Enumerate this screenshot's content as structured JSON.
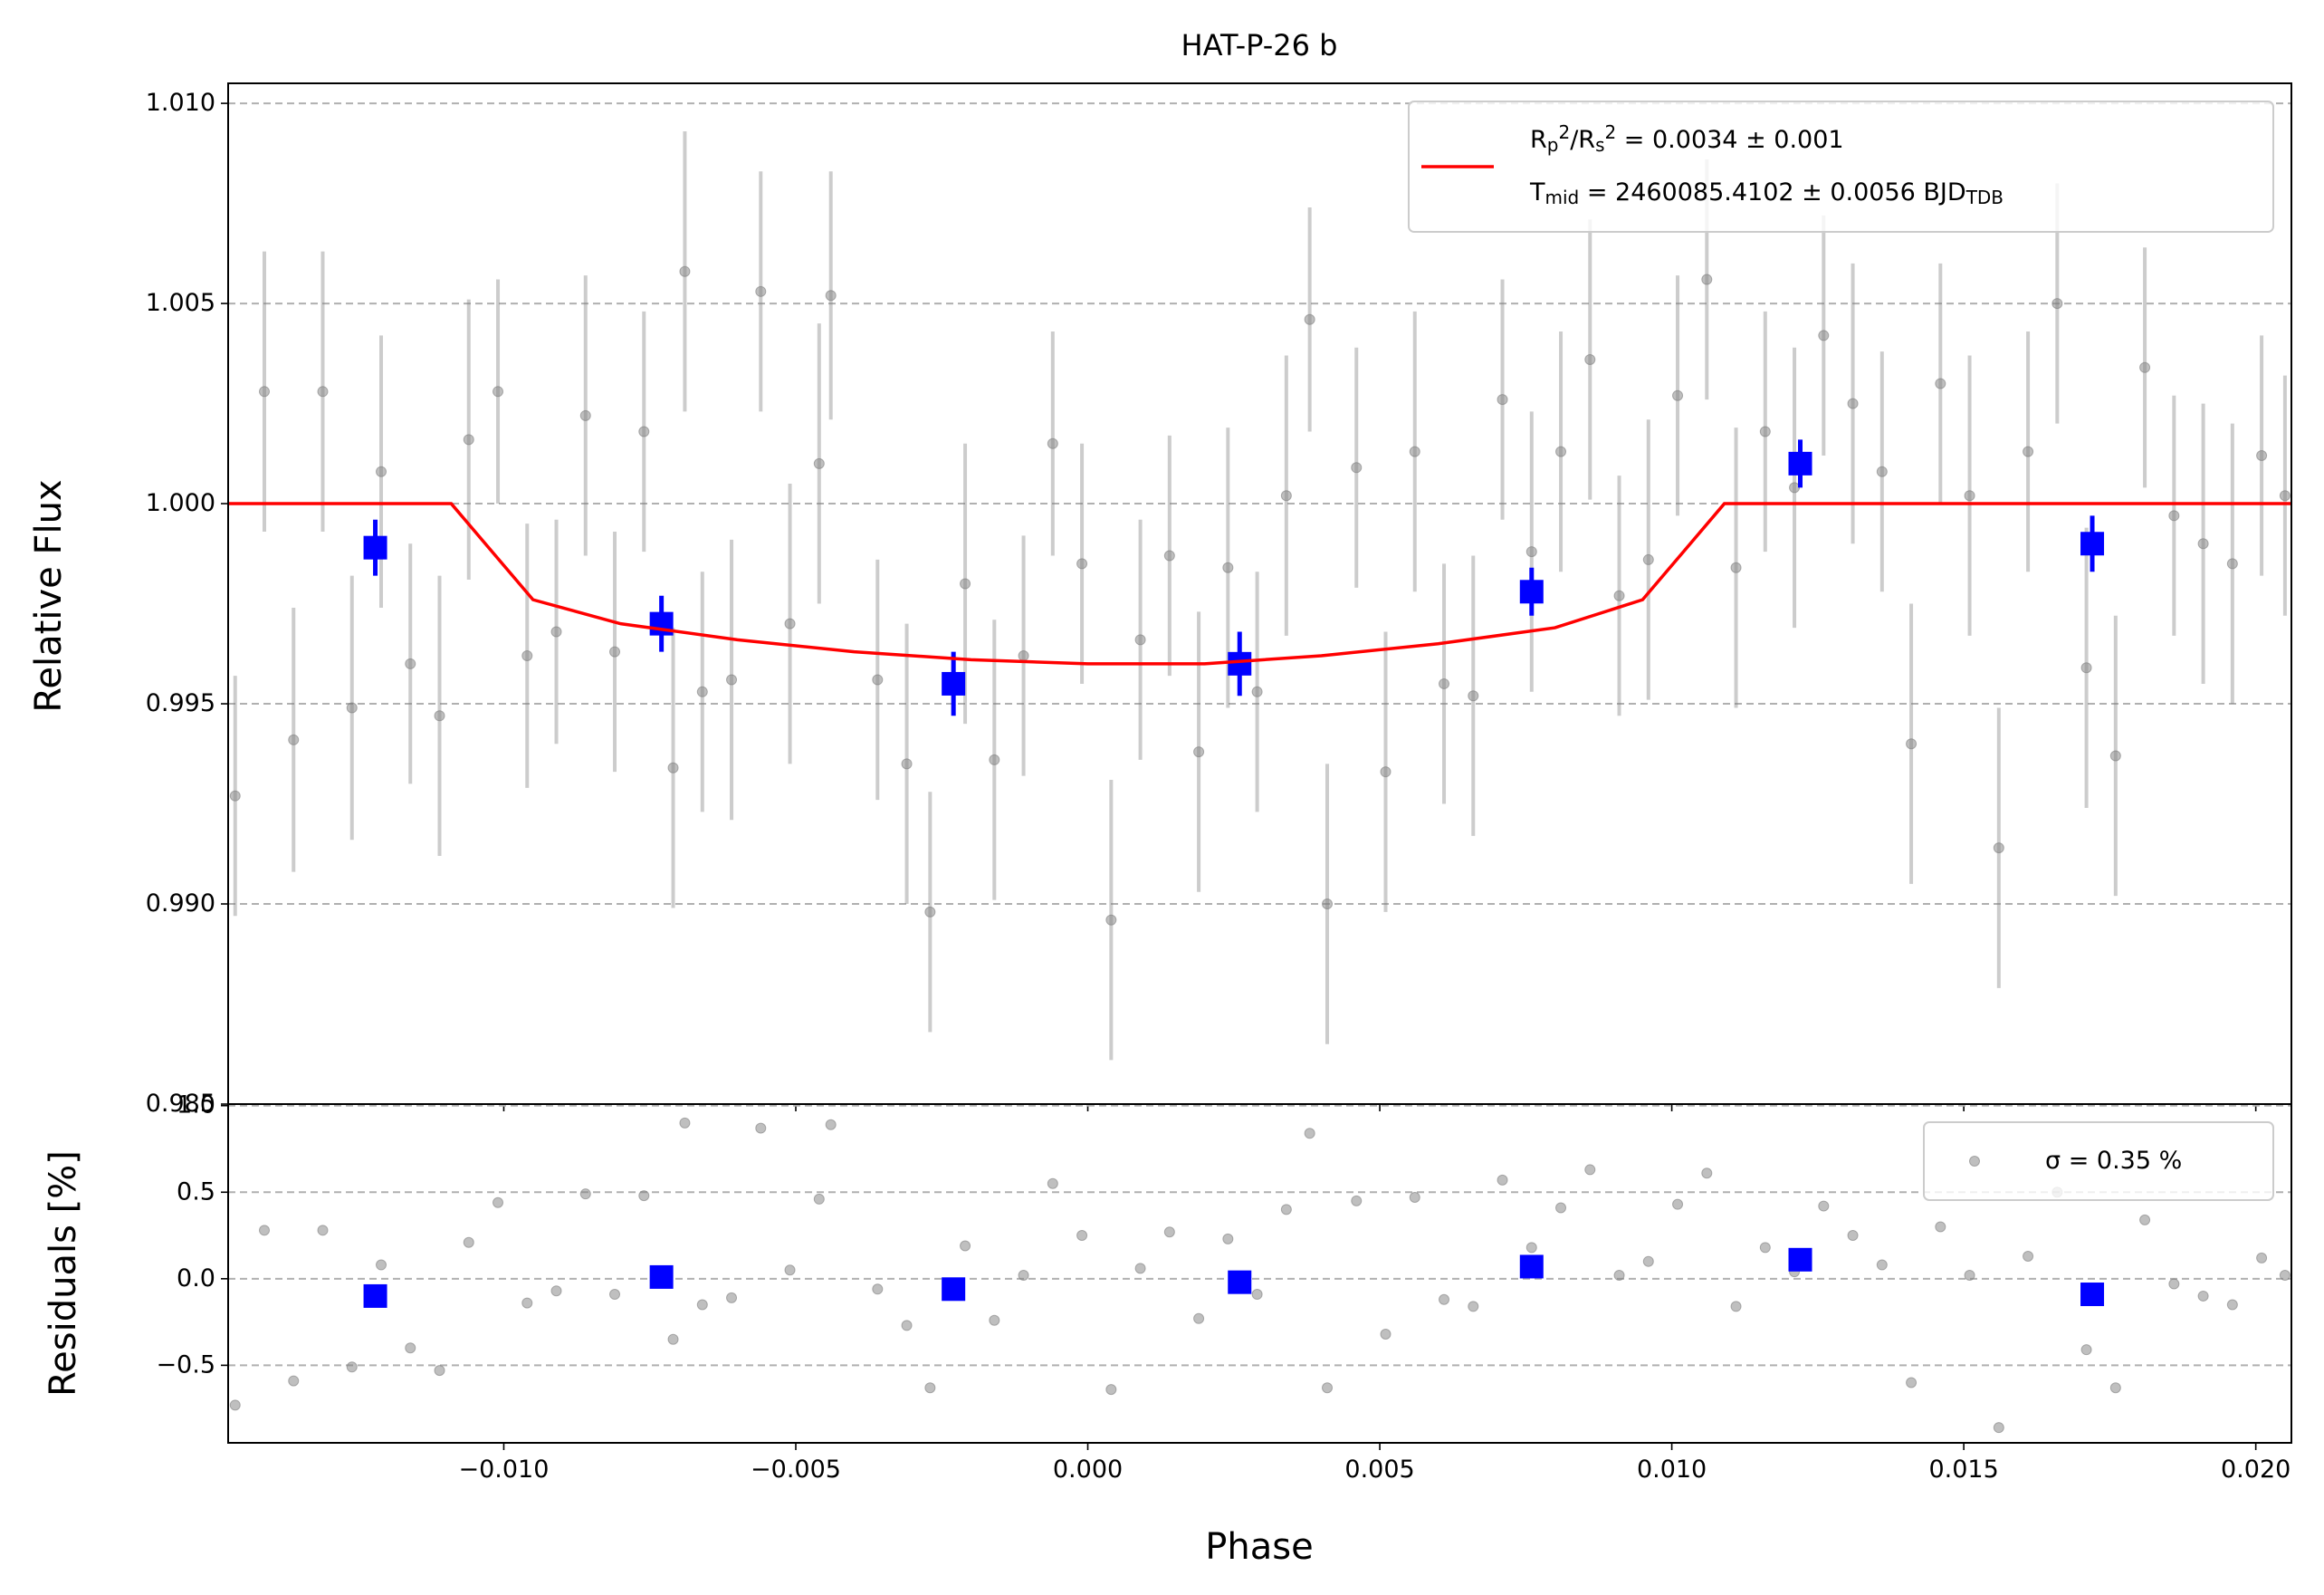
{
  "chart_data": [
    {
      "type": "scatter",
      "title": "HAT-P-26 b",
      "ylabel": "Relative Flux",
      "xlim": [
        -0.01472,
        0.02061
      ],
      "ylim": [
        0.985,
        1.0105
      ],
      "yticks": [
        {
          "value": 0.985,
          "label": "0.985"
        },
        {
          "value": 0.99,
          "label": "0.990"
        },
        {
          "value": 0.995,
          "label": "0.995"
        },
        {
          "value": 1.0,
          "label": "1.000"
        },
        {
          "value": 1.005,
          "label": "1.005"
        },
        {
          "value": 1.01,
          "label": "1.010"
        }
      ],
      "grid": true,
      "legend": "upper right",
      "series": [
        {
          "color": "#808080",
          "marker": "circle",
          "x": [
            -0.0146,
            -0.0141,
            -0.0136,
            -0.0131,
            -0.0126,
            -0.0121,
            -0.0116,
            -0.0111,
            -0.0106,
            -0.0101,
            -0.0096,
            -0.0091,
            -0.0086,
            -0.0081,
            -0.0076,
            -0.0071,
            -0.0069,
            -0.0066,
            -0.0061,
            -0.0056,
            -0.0051,
            -0.0046,
            -0.0044,
            -0.0036,
            -0.0031,
            -0.0027,
            -0.0021,
            -0.0016,
            -0.0011,
            -0.0006,
            -0.0001,
            0.0004,
            0.0009,
            0.0014,
            0.0019,
            0.0024,
            0.0029,
            0.0034,
            0.0038,
            0.0041,
            0.0046,
            0.0051,
            0.0056,
            0.0061,
            0.0066,
            0.0071,
            0.0076,
            0.0081,
            0.0086,
            0.0091,
            0.0096,
            0.0101,
            0.0106,
            0.0111,
            0.0116,
            0.0121,
            0.0126,
            0.0131,
            0.0136,
            0.0141,
            0.0146,
            0.0151,
            0.0156,
            0.0161,
            0.0166,
            0.0171,
            0.0176,
            0.0181,
            0.0186,
            0.0191,
            0.0196,
            0.0201,
            0.0205
          ],
          "values": [
            0.9927,
            1.0028,
            0.9941,
            1.0028,
            0.9949,
            1.0008,
            0.996,
            0.9947,
            1.0016,
            1.0028,
            0.9962,
            0.9968,
            1.0022,
            0.9963,
            1.0018,
            0.9934,
            1.0058,
            0.9953,
            0.9956,
            1.0053,
            0.997,
            1.001,
            1.0052,
            0.9956,
            0.9935,
            0.9898,
            0.998,
            0.9936,
            0.9962,
            1.0015,
            0.9985,
            0.9896,
            0.9966,
            0.9987,
            0.9938,
            0.9984,
            0.9953,
            1.0002,
            1.0046,
            0.99,
            1.0009,
            0.9933,
            1.0013,
            0.9955,
            0.9952,
            1.0026,
            0.9988,
            1.0013,
            1.0036,
            0.9977,
            0.9986,
            1.0027,
            1.0056,
            0.9984,
            1.0018,
            1.0004,
            1.0042,
            1.0025,
            1.0008,
            0.994,
            1.003,
            1.0002,
            0.9914,
            1.0013,
            1.005,
            0.9959,
            0.9937,
            1.0034,
            0.9997,
            0.999,
            0.9985,
            1.0012,
            1.0002
          ],
          "errors": [
            0.003,
            0.0035,
            0.0033,
            0.0035,
            0.0033,
            0.0034,
            0.003,
            0.0035,
            0.0035,
            0.0028,
            0.0033,
            0.0028,
            0.0035,
            0.003,
            0.003,
            0.0035,
            0.0035,
            0.003,
            0.0035,
            0.003,
            0.0035,
            0.0035,
            0.0031,
            0.003,
            0.0035,
            0.003,
            0.0035,
            0.0035,
            0.003,
            0.0028,
            0.003,
            0.0035,
            0.003,
            0.003,
            0.0035,
            0.0035,
            0.003,
            0.0035,
            0.0028,
            0.0035,
            0.003,
            0.0035,
            0.0035,
            0.003,
            0.0035,
            0.003,
            0.0035,
            0.003,
            0.0035,
            0.003,
            0.0035,
            0.003,
            0.003,
            0.0035,
            0.003,
            0.0035,
            0.003,
            0.0035,
            0.003,
            0.0035,
            0.003,
            0.0035,
            0.0035,
            0.003,
            0.003,
            0.0035,
            0.0035,
            0.003,
            0.003,
            0.0035,
            0.0035,
            0.003,
            0.003
          ]
        },
        {
          "color": "#0000ff",
          "marker": "square",
          "x": [
            -0.0122,
            -0.0073,
            -0.0023,
            0.0026,
            0.0076,
            0.0122,
            0.0172
          ],
          "values": [
            0.9989,
            0.997,
            0.9955,
            0.996,
            0.9978,
            1.001,
            0.999
          ],
          "errors": [
            0.0007,
            0.0007,
            0.0008,
            0.0008,
            0.0006,
            0.0006,
            0.0007
          ]
        },
        {
          "name": "R_{p}^{2}/R_{s}^{2} = 0.0034 ± 0.001\nT_{mid} = 2460085.4102 ± 0.0056 BJD_{TDB}",
          "color": "#ff0000",
          "line": "solid",
          "x": [
            -0.01472,
            -0.0109,
            -0.0102,
            -0.0095,
            -0.008,
            -0.006,
            -0.004,
            -0.002,
            0,
            0.002,
            0.004,
            0.006,
            0.008,
            0.0095,
            0.0102,
            0.0109,
            0.02061
          ],
          "values": [
            1,
            1,
            0.9988,
            0.9976,
            0.997,
            0.9966,
            0.9963,
            0.9961,
            0.996,
            0.996,
            0.9962,
            0.9965,
            0.9969,
            0.9976,
            0.9988,
            1,
            1
          ]
        }
      ]
    },
    {
      "type": "scatter",
      "xlabel": "Phase",
      "ylabel": "Residuals [%]",
      "xlim": [
        -0.01472,
        0.02061
      ],
      "ylim": [
        -0.948,
        1.009
      ],
      "xticks": [
        {
          "value": -0.01,
          "label": "−0.010"
        },
        {
          "value": -0.005,
          "label": "−0.005"
        },
        {
          "value": 0,
          "label": "0.000"
        },
        {
          "value": 0.005,
          "label": "0.005"
        },
        {
          "value": 0.01,
          "label": "0.010"
        },
        {
          "value": 0.015,
          "label": "0.015"
        },
        {
          "value": 0.02,
          "label": "0.020"
        }
      ],
      "yticks": [
        {
          "value": -0.5,
          "label": "−0.5"
        },
        {
          "value": 0,
          "label": "0.0"
        },
        0.5,
        {
          "value": 1,
          "label": "1.0"
        }
      ],
      "grid": true,
      "legend": "upper right",
      "series": [
        {
          "name": "σ = 0.35 %",
          "color": "#808080",
          "marker": "circle",
          "x": [
            -0.0146,
            -0.0141,
            -0.0136,
            -0.0131,
            -0.0126,
            -0.0121,
            -0.0116,
            -0.0111,
            -0.0106,
            -0.0101,
            -0.0096,
            -0.0091,
            -0.0086,
            -0.0081,
            -0.0076,
            -0.0071,
            -0.0069,
            -0.0066,
            -0.0061,
            -0.0056,
            -0.0051,
            -0.0046,
            -0.0044,
            -0.0036,
            -0.0031,
            -0.0027,
            -0.0021,
            -0.0016,
            -0.0011,
            -0.0006,
            -0.0001,
            0.0004,
            0.0009,
            0.0014,
            0.0019,
            0.0024,
            0.0029,
            0.0034,
            0.0038,
            0.0041,
            0.0046,
            0.0051,
            0.0056,
            0.0061,
            0.0066,
            0.0071,
            0.0076,
            0.0081,
            0.0086,
            0.0091,
            0.0096,
            0.0101,
            0.0106,
            0.0111,
            0.0116,
            0.0121,
            0.0126,
            0.0131,
            0.0136,
            0.0141,
            0.0146,
            0.0151,
            0.0156,
            0.0161,
            0.0166,
            0.0171,
            0.0176,
            0.0181,
            0.0186,
            0.0191,
            0.0196,
            0.0201,
            0.0205
          ],
          "values": [
            -0.73,
            0.28,
            -0.59,
            0.28,
            -0.51,
            0.08,
            -0.4,
            -0.53,
            0.21,
            0.44,
            -0.14,
            -0.07,
            0.49,
            -0.09,
            0.48,
            -0.35,
            0.9,
            -0.15,
            -0.11,
            0.87,
            0.05,
            0.46,
            0.89,
            -0.06,
            -0.27,
            -0.63,
            0.19,
            -0.24,
            0.02,
            0.55,
            0.25,
            -0.64,
            0.06,
            0.27,
            -0.23,
            0.23,
            -0.09,
            0.4,
            0.84,
            -0.63,
            0.45,
            -0.32,
            0.47,
            -0.12,
            -0.16,
            0.57,
            0.18,
            0.41,
            0.63,
            0.02,
            0.1,
            0.43,
            0.61,
            -0.16,
            0.18,
            0.04,
            0.42,
            0.25,
            0.08,
            -0.6,
            0.3,
            0.02,
            -0.86,
            0.13,
            0.5,
            -0.41,
            -0.63,
            0.34,
            -0.03,
            -0.1,
            -0.15,
            0.12,
            0.02
          ]
        },
        {
          "color": "#0000ff",
          "marker": "square",
          "x": [
            -0.0122,
            -0.0073,
            -0.0023,
            0.0026,
            0.0076,
            0.0122,
            0.0172
          ],
          "values": [
            -0.1,
            0.01,
            -0.06,
            -0.02,
            0.07,
            0.11,
            -0.09
          ]
        }
      ]
    }
  ]
}
